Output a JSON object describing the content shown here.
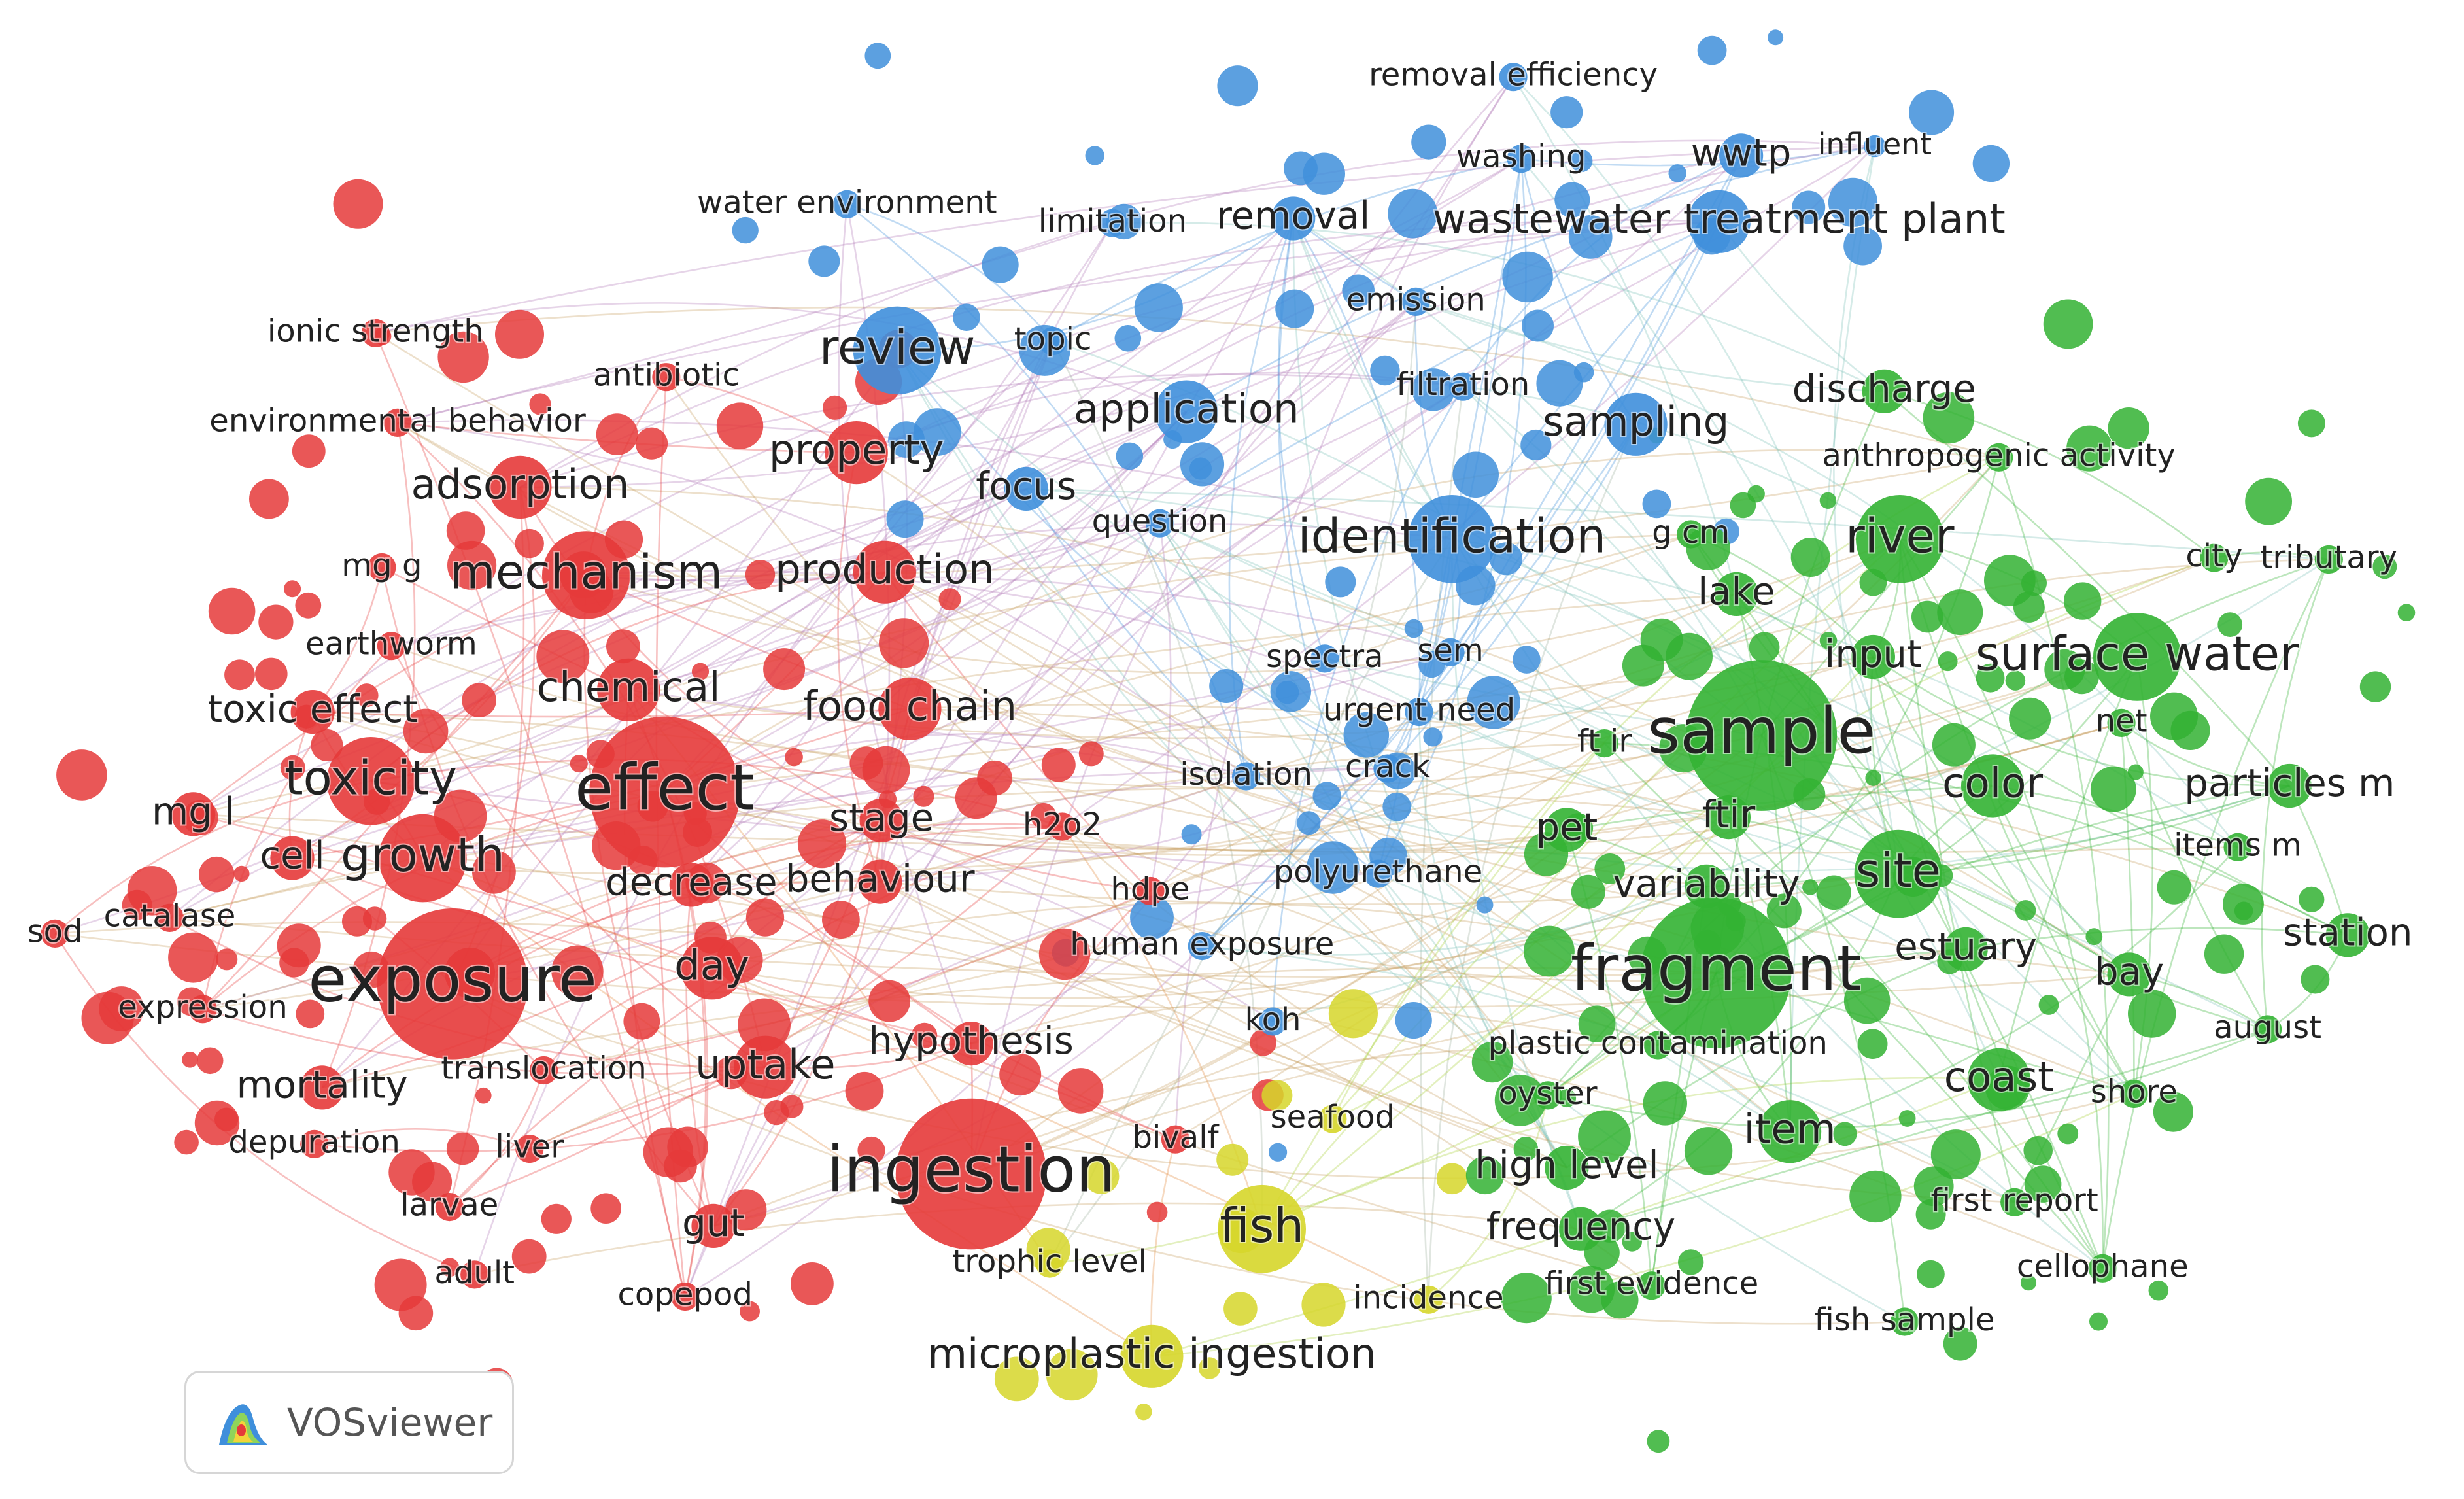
{
  "legend": {
    "software": "VOSviewer"
  },
  "cluster_colors": {
    "red": "#e53a3a",
    "blue": "#3f8fdb",
    "green": "#33b233",
    "yellow": "#d6d62a"
  },
  "terms": [
    {
      "label": "removal efficiency",
      "cluster": "blue",
      "weight": 2
    },
    {
      "label": "washing",
      "cluster": "blue",
      "weight": 2
    },
    {
      "label": "wwtp",
      "cluster": "blue",
      "weight": 3
    },
    {
      "label": "influent",
      "cluster": "blue",
      "weight": 1
    },
    {
      "label": "water environment",
      "cluster": "blue",
      "weight": 2
    },
    {
      "label": "limitation",
      "cluster": "blue",
      "weight": 2
    },
    {
      "label": "removal",
      "cluster": "blue",
      "weight": 3
    },
    {
      "label": "wastewater treatment plant",
      "cluster": "blue",
      "weight": 4
    },
    {
      "label": "emission",
      "cluster": "blue",
      "weight": 2
    },
    {
      "label": "review",
      "cluster": "blue",
      "weight": 5
    },
    {
      "label": "topic",
      "cluster": "blue",
      "weight": 2
    },
    {
      "label": "filtration",
      "cluster": "blue",
      "weight": 2
    },
    {
      "label": "application",
      "cluster": "blue",
      "weight": 4
    },
    {
      "label": "sampling",
      "cluster": "blue",
      "weight": 4
    },
    {
      "label": "focus",
      "cluster": "blue",
      "weight": 3
    },
    {
      "label": "question",
      "cluster": "blue",
      "weight": 2
    },
    {
      "label": "identification",
      "cluster": "blue",
      "weight": 5
    },
    {
      "label": "spectra",
      "cluster": "blue",
      "weight": 2
    },
    {
      "label": "sem",
      "cluster": "blue",
      "weight": 2
    },
    {
      "label": "urgent need",
      "cluster": "blue",
      "weight": 2
    },
    {
      "label": "isolation",
      "cluster": "blue",
      "weight": 2
    },
    {
      "label": "crack",
      "cluster": "blue",
      "weight": 2
    },
    {
      "label": "polyurethane",
      "cluster": "blue",
      "weight": 2
    },
    {
      "label": "human exposure",
      "cluster": "blue",
      "weight": 2
    },
    {
      "label": "koh",
      "cluster": "blue",
      "weight": 2
    },
    {
      "label": "ionic strength",
      "cluster": "red",
      "weight": 2
    },
    {
      "label": "antibiotic",
      "cluster": "red",
      "weight": 2
    },
    {
      "label": "environmental behavior",
      "cluster": "red",
      "weight": 2
    },
    {
      "label": "adsorption",
      "cluster": "red",
      "weight": 4
    },
    {
      "label": "property",
      "cluster": "red",
      "weight": 4
    },
    {
      "label": "mg g",
      "cluster": "red",
      "weight": 2
    },
    {
      "label": "mechanism",
      "cluster": "red",
      "weight": 5
    },
    {
      "label": "production",
      "cluster": "red",
      "weight": 4
    },
    {
      "label": "earthworm",
      "cluster": "red",
      "weight": 2
    },
    {
      "label": "chemical",
      "cluster": "red",
      "weight": 4
    },
    {
      "label": "toxic effect",
      "cluster": "red",
      "weight": 3
    },
    {
      "label": "food chain",
      "cluster": "red",
      "weight": 4
    },
    {
      "label": "effect",
      "cluster": "red",
      "weight": 6
    },
    {
      "label": "toxicity",
      "cluster": "red",
      "weight": 5
    },
    {
      "label": "mg l",
      "cluster": "red",
      "weight": 3
    },
    {
      "label": "stage",
      "cluster": "red",
      "weight": 3
    },
    {
      "label": "h2o2",
      "cluster": "red",
      "weight": 2
    },
    {
      "label": "cell",
      "cluster": "red",
      "weight": 3
    },
    {
      "label": "growth",
      "cluster": "red",
      "weight": 5
    },
    {
      "label": "decrease",
      "cluster": "red",
      "weight": 3
    },
    {
      "label": "behaviour",
      "cluster": "red",
      "weight": 3
    },
    {
      "label": "hdpe",
      "cluster": "red",
      "weight": 2
    },
    {
      "label": "sod",
      "cluster": "red",
      "weight": 2
    },
    {
      "label": "catalase",
      "cluster": "red",
      "weight": 2
    },
    {
      "label": "exposure",
      "cluster": "red",
      "weight": 6
    },
    {
      "label": "day",
      "cluster": "red",
      "weight": 4
    },
    {
      "label": "expression",
      "cluster": "red",
      "weight": 2
    },
    {
      "label": "hypothesis",
      "cluster": "red",
      "weight": 3
    },
    {
      "label": "mortality",
      "cluster": "red",
      "weight": 3
    },
    {
      "label": "translocation",
      "cluster": "red",
      "weight": 2
    },
    {
      "label": "uptake",
      "cluster": "red",
      "weight": 4
    },
    {
      "label": "depuration",
      "cluster": "red",
      "weight": 2
    },
    {
      "label": "liver",
      "cluster": "red",
      "weight": 2
    },
    {
      "label": "bivalf",
      "cluster": "red",
      "weight": 2
    },
    {
      "label": "ingestion",
      "cluster": "red",
      "weight": 6
    },
    {
      "label": "larvae",
      "cluster": "red",
      "weight": 2
    },
    {
      "label": "gut",
      "cluster": "red",
      "weight": 3
    },
    {
      "label": "adult",
      "cluster": "red",
      "weight": 2
    },
    {
      "label": "copepod",
      "cluster": "red",
      "weight": 2
    },
    {
      "label": "trophic level",
      "cluster": "yellow",
      "weight": 2
    },
    {
      "label": "seafood",
      "cluster": "yellow",
      "weight": 2
    },
    {
      "label": "fish",
      "cluster": "yellow",
      "weight": 5
    },
    {
      "label": "incidence",
      "cluster": "yellow",
      "weight": 2
    },
    {
      "label": "microplastic ingestion",
      "cluster": "yellow",
      "weight": 4
    },
    {
      "label": "discharge",
      "cluster": "green",
      "weight": 3
    },
    {
      "label": "anthropogenic activity",
      "cluster": "green",
      "weight": 2
    },
    {
      "label": "river",
      "cluster": "green",
      "weight": 5
    },
    {
      "label": "g cm",
      "cluster": "green",
      "weight": 2
    },
    {
      "label": "city",
      "cluster": "green",
      "weight": 2
    },
    {
      "label": "tributary",
      "cluster": "green",
      "weight": 2
    },
    {
      "label": "lake",
      "cluster": "green",
      "weight": 3
    },
    {
      "label": "input",
      "cluster": "green",
      "weight": 3
    },
    {
      "label": "surface water",
      "cluster": "green",
      "weight": 5
    },
    {
      "label": "sample",
      "cluster": "green",
      "weight": 6
    },
    {
      "label": "ft ir",
      "cluster": "green",
      "weight": 2
    },
    {
      "label": "net",
      "cluster": "green",
      "weight": 2
    },
    {
      "label": "color",
      "cluster": "green",
      "weight": 4
    },
    {
      "label": "particles m",
      "cluster": "green",
      "weight": 3
    },
    {
      "label": "pet",
      "cluster": "green",
      "weight": 3
    },
    {
      "label": "ftir",
      "cluster": "green",
      "weight": 3
    },
    {
      "label": "site",
      "cluster": "green",
      "weight": 5
    },
    {
      "label": "items m",
      "cluster": "green",
      "weight": 2
    },
    {
      "label": "variability",
      "cluster": "green",
      "weight": 3
    },
    {
      "label": "station",
      "cluster": "green",
      "weight": 3
    },
    {
      "label": "fragment",
      "cluster": "green",
      "weight": 6
    },
    {
      "label": "estuary",
      "cluster": "green",
      "weight": 3
    },
    {
      "label": "bay",
      "cluster": "green",
      "weight": 3
    },
    {
      "label": "plastic contamination",
      "cluster": "green",
      "weight": 2
    },
    {
      "label": "august",
      "cluster": "green",
      "weight": 2
    },
    {
      "label": "oyster",
      "cluster": "green",
      "weight": 2
    },
    {
      "label": "coast",
      "cluster": "green",
      "weight": 4
    },
    {
      "label": "shore",
      "cluster": "green",
      "weight": 2
    },
    {
      "label": "item",
      "cluster": "green",
      "weight": 4
    },
    {
      "label": "high level",
      "cluster": "green",
      "weight": 3
    },
    {
      "label": "frequency",
      "cluster": "green",
      "weight": 3
    },
    {
      "label": "first report",
      "cluster": "green",
      "weight": 2
    },
    {
      "label": "first evidence",
      "cluster": "green",
      "weight": 2
    },
    {
      "label": "cellophane",
      "cluster": "green",
      "weight": 2
    },
    {
      "label": "fish sample",
      "cluster": "green",
      "weight": 2
    }
  ]
}
